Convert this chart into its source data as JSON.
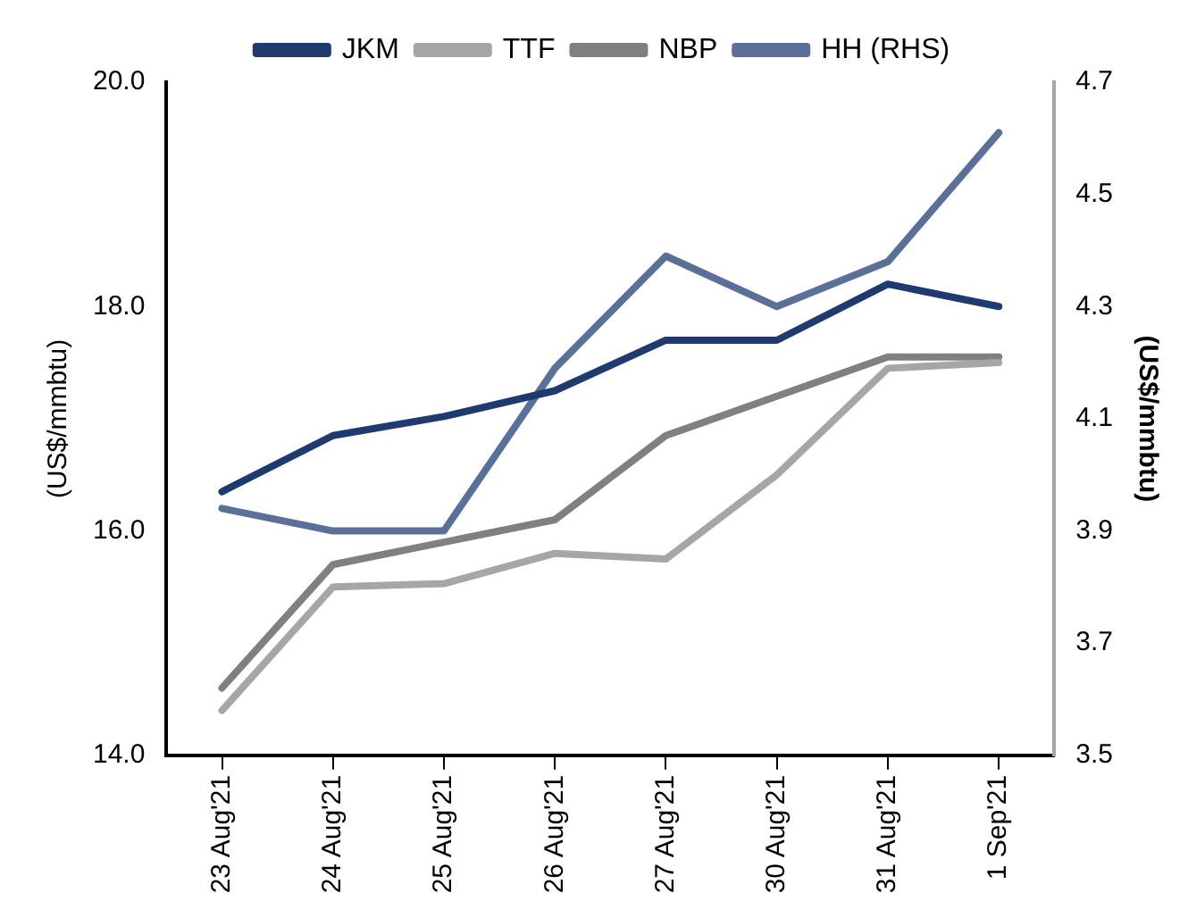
{
  "chart_data": {
    "type": "line",
    "ylabel": "(US$/mmbtu)",
    "y2label": "(US$/mmbtu)",
    "categories": [
      "23 Aug'21",
      "24 Aug'21",
      "25 Aug'21",
      "26 Aug'21",
      "27 Aug'21",
      "30 Aug'21",
      "31 Aug'21",
      "1 Sep'21"
    ],
    "series": [
      {
        "name": "JKM",
        "color": "#1f3a6e",
        "values": [
          16.35,
          16.85,
          17.02,
          17.25,
          17.7,
          17.7,
          18.2,
          18.0
        ]
      },
      {
        "name": "TTF",
        "color": "#a6a6a6",
        "values": [
          14.4,
          15.5,
          15.53,
          15.8,
          15.75,
          16.5,
          17.45,
          17.5
        ]
      },
      {
        "name": "NBP",
        "color": "#808080",
        "values": [
          14.6,
          15.7,
          15.9,
          16.1,
          16.85,
          17.2,
          17.55,
          17.55
        ]
      },
      {
        "name": "HH (RHS)",
        "color": "#5a7099",
        "axis": "y2",
        "values": [
          3.94,
          3.9,
          3.9,
          4.19,
          4.39,
          4.3,
          4.38,
          4.61
        ]
      }
    ],
    "ylim": [
      14,
      20
    ],
    "yticks": [
      {
        "value": 14,
        "label": "14.0"
      },
      {
        "value": 16,
        "label": "16.0"
      },
      {
        "value": 18,
        "label": "18.0"
      },
      {
        "value": 20,
        "label": "20.0"
      }
    ],
    "y2lim": [
      3.5,
      4.7
    ],
    "y2ticks": [
      3.5,
      3.7,
      3.9,
      4.1,
      4.3,
      4.5,
      4.7
    ],
    "grid": false,
    "legend": "top",
    "marker": "none",
    "line_style": "solid"
  }
}
